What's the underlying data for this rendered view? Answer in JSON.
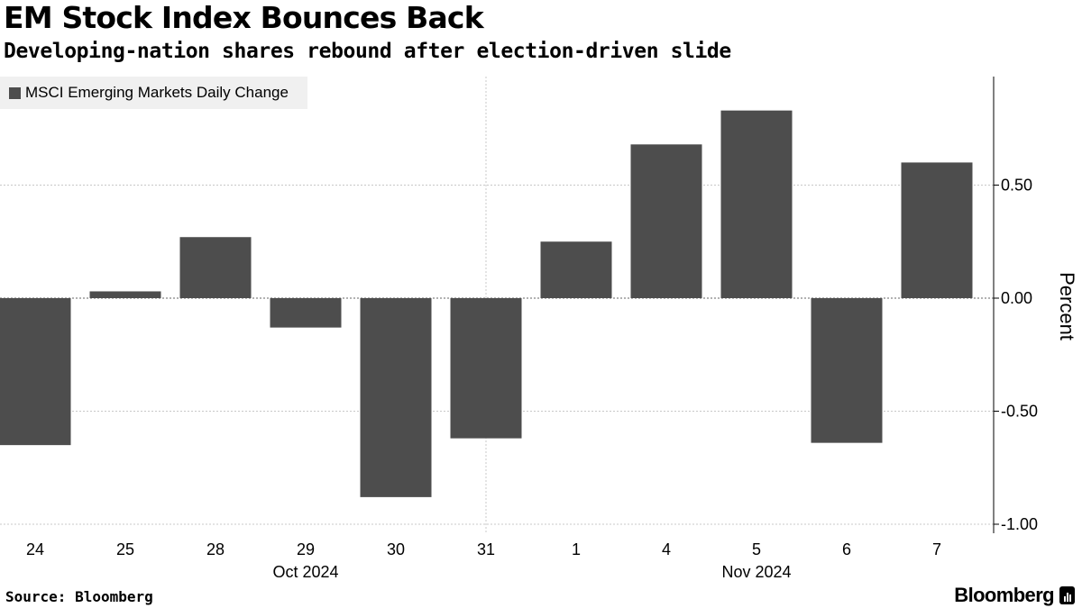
{
  "header": {
    "title": "EM Stock Index Bounces Back",
    "subtitle": "Developing-nation shares rebound after election-driven slide"
  },
  "legend": {
    "label": "MSCI Emerging Markets Daily Change",
    "color": "#4d4d4d"
  },
  "footer": {
    "source": "Source: Bloomberg",
    "brand": "Bloomberg"
  },
  "chart_data": {
    "type": "bar",
    "title": "EM Stock Index Bounces Back",
    "subtitle": "Developing-nation shares rebound after election-driven slide",
    "xlabel": "",
    "ylabel": "Percent",
    "ylim": [
      -1.0,
      0.95
    ],
    "yticks": [
      -1.0,
      -0.5,
      0.0,
      0.5
    ],
    "ytick_labels": [
      "-1.00",
      "-0.50",
      "0.00",
      "0.50"
    ],
    "grid": true,
    "legend_position": "top-left",
    "categories": [
      "24",
      "25",
      "28",
      "29",
      "30",
      "31",
      "1",
      "4",
      "5",
      "6",
      "7"
    ],
    "month_labels": [
      {
        "label": "Oct 2024",
        "center_category": "29"
      },
      {
        "label": "Nov 2024",
        "center_category": "5"
      }
    ],
    "series": [
      {
        "name": "MSCI Emerging Markets Daily Change",
        "color": "#4d4d4d",
        "values": [
          -0.65,
          0.03,
          0.27,
          -0.13,
          -0.88,
          -0.62,
          0.25,
          0.68,
          0.83,
          -0.64,
          0.6
        ]
      }
    ]
  }
}
